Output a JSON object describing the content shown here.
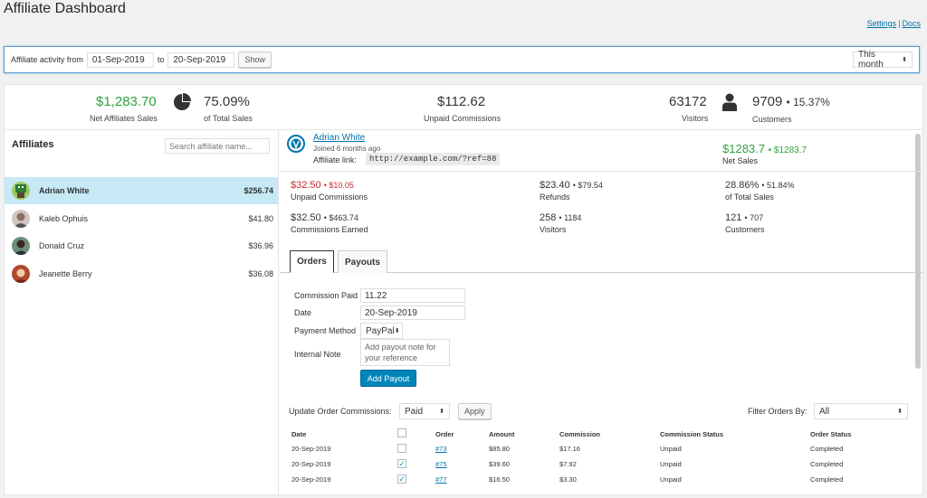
{
  "page": {
    "title": "Affiliate Dashboard"
  },
  "links": {
    "settings": "Settings",
    "sep": "|",
    "docs": "Docs"
  },
  "filter": {
    "label": "Affiliate activity from",
    "from": "01-Sep-2019",
    "to_label": "to",
    "to": "20-Sep-2019",
    "show": "Show",
    "period": "This month"
  },
  "stats": {
    "net_sales": "$1,283.70",
    "net_sales_label": "Net Affiliates Sales",
    "pct_sales": "75.09%",
    "pct_sales_label": "of Total Sales",
    "unpaid": "$112.62",
    "unpaid_label": "Unpaid Commissions",
    "visitors": "63172",
    "visitors_label": "Visitors",
    "customers": "9709",
    "customers_pct": "• 15.37%",
    "customers_label": "Customers"
  },
  "affiliates": {
    "title": "Affiliates",
    "search_placeholder": "Search affiliate name...",
    "list": [
      {
        "name": "Adrian White",
        "amount": "$256.74"
      },
      {
        "name": "Kaleb Ophuis",
        "amount": "$41.80"
      },
      {
        "name": "Donald Cruz",
        "amount": "$36.96"
      },
      {
        "name": "Jeanette Berry",
        "amount": "$36.08"
      }
    ]
  },
  "profile": {
    "name": "Adrian White",
    "joined": "Joined 6 months ago",
    "link_label": "Affiliate link:",
    "link": "http://example.com/?ref=88",
    "net_value": "$1283.7",
    "net_sub": "• $1283.7",
    "net_label": "Net Sales"
  },
  "metrics": {
    "unpaid": {
      "value": "$32.50",
      "sub": "• $10.05",
      "label": "Unpaid Commissions"
    },
    "refunds": {
      "value": "$23.40",
      "sub": "• $79.54",
      "label": "Refunds"
    },
    "pct": {
      "value": "28.86%",
      "sub": "• 51.84%",
      "label": "of Total Sales"
    },
    "earned": {
      "value": "$32.50",
      "sub": "• $463.74",
      "label": "Commissions Earned"
    },
    "visitors": {
      "value": "258",
      "sub": "• 1184",
      "label": "Visitors"
    },
    "customers": {
      "value": "121",
      "sub": "• 707",
      "label": "Customers"
    }
  },
  "tabs": {
    "orders": "Orders",
    "payouts": "Payouts"
  },
  "payout": {
    "commission_label": "Commission Paid",
    "commission_value": "11.22",
    "date_label": "Date",
    "date_value": "20-Sep-2019",
    "method_label": "Payment Method",
    "method_value": "PayPal",
    "note_label": "Internal Note",
    "note_placeholder": "Add payout note for your reference",
    "button": "Add Payout"
  },
  "orders": {
    "update_label": "Update Order Commissions:",
    "update_value": "Paid",
    "apply": "Apply",
    "filter_label": "Filter Orders By:",
    "filter_value": "All",
    "headers": {
      "date": "Date",
      "order": "Order",
      "amount": "Amount",
      "commission": "Commission",
      "commission_status": "Commission Status",
      "order_status": "Order Status"
    },
    "rows": [
      {
        "date": "20-Sep-2019",
        "checked": false,
        "order": "#73",
        "amount": "$85.80",
        "commission": "$17.16",
        "commission_status": "Unpaid",
        "order_status": "Completed"
      },
      {
        "date": "20-Sep-2019",
        "checked": true,
        "order": "#75",
        "amount": "$39.60",
        "commission": "$7.92",
        "commission_status": "Unpaid",
        "order_status": "Completed"
      },
      {
        "date": "20-Sep-2019",
        "checked": true,
        "order": "#77",
        "amount": "$16.50",
        "commission": "$3.30",
        "commission_status": "Unpaid",
        "order_status": "Completed"
      }
    ]
  },
  "colors": {
    "accent": "#0085ba",
    "green": "#2ea23f",
    "red": "#c92a2a",
    "selected_row": "#c6e9f5"
  }
}
